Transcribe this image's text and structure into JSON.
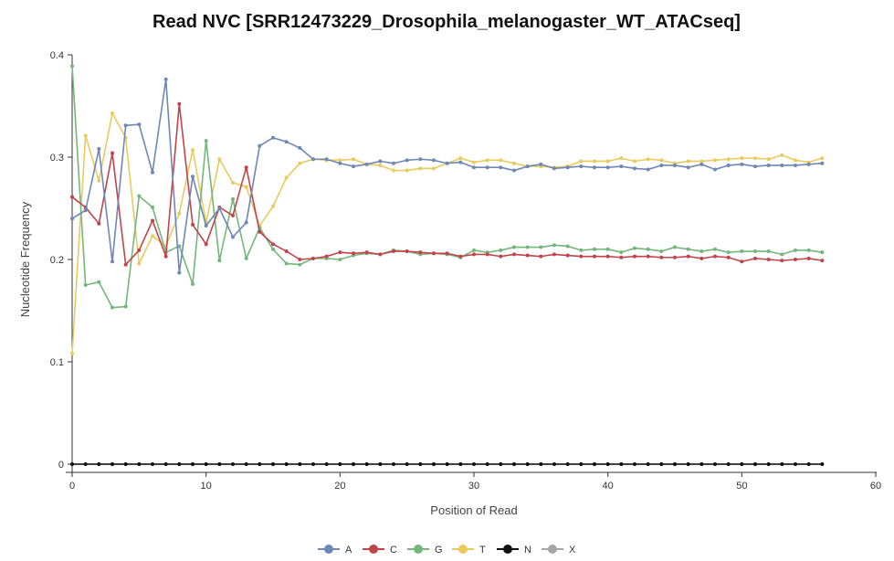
{
  "chart_data": {
    "type": "line",
    "title": "Read NVC [SRR12473229_Drosophila_melanogaster_WT_ATACseq]",
    "xlabel": "Position of Read",
    "ylabel": "Nucleotide Frequency",
    "xlim": [
      0,
      60
    ],
    "ylim": [
      0,
      0.4
    ],
    "xticks": [
      0,
      10,
      20,
      30,
      40,
      50,
      60
    ],
    "yticks": [
      0,
      0.1,
      0.2,
      0.3,
      0.4
    ],
    "grid": false,
    "legend": "bottom-center",
    "x": [
      0,
      1,
      2,
      3,
      4,
      5,
      6,
      7,
      8,
      9,
      10,
      11,
      12,
      13,
      14,
      15,
      16,
      17,
      18,
      19,
      20,
      21,
      22,
      23,
      24,
      25,
      26,
      27,
      28,
      29,
      30,
      31,
      32,
      33,
      34,
      35,
      36,
      37,
      38,
      39,
      40,
      41,
      42,
      43,
      44,
      45,
      46,
      47,
      48,
      49,
      50,
      51,
      52,
      53,
      54,
      55,
      56
    ],
    "series": [
      {
        "name": "A",
        "color": "#6f87b5",
        "values": [
          0.24,
          0.248,
          0.308,
          0.198,
          0.331,
          0.332,
          0.285,
          0.376,
          0.187,
          0.281,
          0.233,
          0.25,
          0.222,
          0.236,
          0.311,
          0.319,
          0.315,
          0.309,
          0.298,
          0.298,
          0.294,
          0.291,
          0.293,
          0.296,
          0.294,
          0.297,
          0.298,
          0.297,
          0.294,
          0.295,
          0.29,
          0.29,
          0.29,
          0.287,
          0.291,
          0.293,
          0.289,
          0.29,
          0.291,
          0.29,
          0.29,
          0.291,
          0.289,
          0.288,
          0.292,
          0.292,
          0.29,
          0.293,
          0.288,
          0.292,
          0.293,
          0.291,
          0.292,
          0.292,
          0.292,
          0.293,
          0.294
        ]
      },
      {
        "name": "C",
        "color": "#c2444a",
        "values": [
          0.261,
          0.251,
          0.235,
          0.304,
          0.195,
          0.209,
          0.238,
          0.203,
          0.352,
          0.234,
          0.215,
          0.251,
          0.243,
          0.29,
          0.227,
          0.215,
          0.208,
          0.2,
          0.201,
          0.203,
          0.207,
          0.206,
          0.207,
          0.205,
          0.208,
          0.208,
          0.207,
          0.206,
          0.206,
          0.203,
          0.205,
          0.205,
          0.203,
          0.205,
          0.204,
          0.203,
          0.205,
          0.204,
          0.203,
          0.203,
          0.203,
          0.202,
          0.203,
          0.203,
          0.202,
          0.202,
          0.203,
          0.201,
          0.203,
          0.202,
          0.198,
          0.201,
          0.2,
          0.199,
          0.2,
          0.201,
          0.199
        ]
      },
      {
        "name": "G",
        "color": "#74b77a",
        "values": [
          0.389,
          0.175,
          0.178,
          0.153,
          0.154,
          0.262,
          0.251,
          0.207,
          0.213,
          0.176,
          0.316,
          0.199,
          0.259,
          0.201,
          0.231,
          0.21,
          0.196,
          0.195,
          0.201,
          0.201,
          0.2,
          0.204,
          0.206,
          0.205,
          0.209,
          0.208,
          0.205,
          0.206,
          0.205,
          0.202,
          0.209,
          0.207,
          0.209,
          0.212,
          0.212,
          0.212,
          0.214,
          0.213,
          0.209,
          0.21,
          0.21,
          0.207,
          0.211,
          0.21,
          0.208,
          0.212,
          0.21,
          0.208,
          0.21,
          0.207,
          0.208,
          0.208,
          0.208,
          0.205,
          0.209,
          0.209,
          0.207
        ]
      },
      {
        "name": "T",
        "color": "#e9cb5c",
        "values": [
          0.108,
          0.321,
          0.277,
          0.343,
          0.319,
          0.196,
          0.223,
          0.213,
          0.245,
          0.307,
          0.236,
          0.298,
          0.275,
          0.271,
          0.233,
          0.252,
          0.28,
          0.294,
          0.298,
          0.297,
          0.297,
          0.298,
          0.293,
          0.292,
          0.287,
          0.287,
          0.289,
          0.289,
          0.294,
          0.299,
          0.295,
          0.297,
          0.297,
          0.294,
          0.291,
          0.291,
          0.29,
          0.291,
          0.296,
          0.296,
          0.296,
          0.299,
          0.296,
          0.298,
          0.297,
          0.294,
          0.296,
          0.296,
          0.297,
          0.298,
          0.299,
          0.299,
          0.298,
          0.302,
          0.297,
          0.295,
          0.299
        ]
      },
      {
        "name": "N",
        "color": "#111111",
        "values": [
          0,
          0,
          0,
          0,
          0,
          0,
          0,
          0,
          0,
          0,
          0,
          0,
          0,
          0,
          0,
          0,
          0,
          0,
          0,
          0,
          0,
          0,
          0,
          0,
          0,
          0,
          0,
          0,
          0,
          0,
          0,
          0,
          0,
          0,
          0,
          0,
          0,
          0,
          0,
          0,
          0,
          0,
          0,
          0,
          0,
          0,
          0,
          0,
          0,
          0,
          0,
          0,
          0,
          0,
          0,
          0,
          0
        ]
      },
      {
        "name": "X",
        "color": "#a6a6a6",
        "values": [
          0,
          0,
          0,
          0,
          0,
          0,
          0,
          0,
          0,
          0,
          0,
          0,
          0,
          0,
          0,
          0,
          0,
          0,
          0,
          0,
          0,
          0,
          0,
          0,
          0,
          0,
          0,
          0,
          0,
          0,
          0,
          0,
          0,
          0,
          0,
          0,
          0,
          0,
          0,
          0,
          0,
          0,
          0,
          0,
          0,
          0,
          0,
          0,
          0,
          0,
          0,
          0,
          0,
          0,
          0,
          0,
          0
        ]
      }
    ]
  }
}
